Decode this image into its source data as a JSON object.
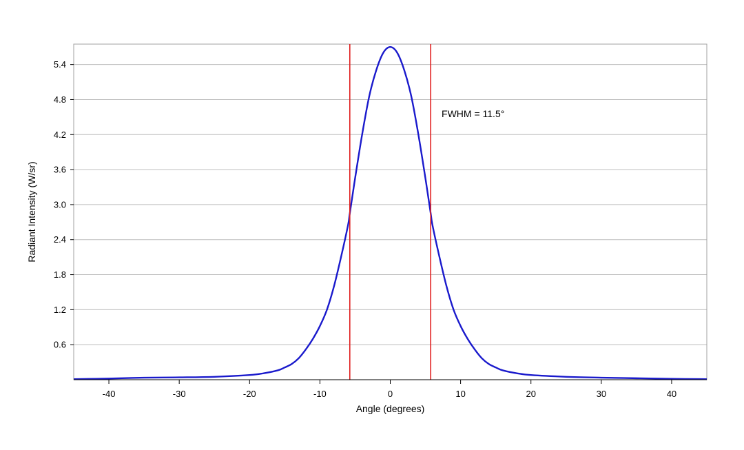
{
  "chart_data": {
    "type": "line",
    "title": "",
    "xlabel": "Angle (degrees)",
    "ylabel": "Radiant Intensity (W/sr)",
    "xlim": [
      -45,
      45
    ],
    "ylim": [
      0,
      5.75
    ],
    "x_ticks": [
      -40,
      -30,
      -20,
      -10,
      0,
      10,
      20,
      30,
      40
    ],
    "x_tick_labels": [
      "-40",
      "-30",
      "-20",
      "-10",
      "0",
      "10",
      "20",
      "30",
      "40"
    ],
    "y_ticks": [
      0.6,
      1.2,
      1.8,
      2.4,
      3.0,
      3.6,
      4.2,
      4.8,
      5.4
    ],
    "y_tick_labels": [
      "0.6",
      "1.2",
      "1.8",
      "2.4",
      "3.0",
      "3.6",
      "4.2",
      "4.8",
      "5.4"
    ],
    "grid": {
      "horizontal": true,
      "vertical": false
    },
    "line_color": "#1a1acc",
    "marker_line_color": "#e02020",
    "series": [
      {
        "x": [
          -45,
          -40,
          -35,
          -30,
          -25,
          -20,
          -18,
          -16,
          -15,
          -14,
          -13,
          -12,
          -11,
          -10,
          -9,
          -8,
          -7,
          -6,
          -5.75,
          -5,
          -4,
          -3,
          -2,
          -1,
          0,
          1,
          2,
          3,
          4,
          5,
          5.75,
          6,
          7,
          8,
          9,
          10,
          11,
          12,
          13,
          14,
          15,
          16,
          18,
          20,
          25,
          30,
          35,
          40,
          45
        ],
        "y": [
          0.01,
          0.02,
          0.035,
          0.04,
          0.05,
          0.08,
          0.11,
          0.16,
          0.21,
          0.27,
          0.37,
          0.52,
          0.7,
          0.92,
          1.2,
          1.6,
          2.1,
          2.65,
          2.85,
          3.45,
          4.2,
          4.85,
          5.3,
          5.6,
          5.7,
          5.6,
          5.3,
          4.85,
          4.2,
          3.45,
          2.85,
          2.65,
          2.1,
          1.6,
          1.2,
          0.92,
          0.7,
          0.52,
          0.37,
          0.27,
          0.21,
          0.16,
          0.11,
          0.08,
          0.05,
          0.035,
          0.025,
          0.015,
          0.01
        ]
      }
    ],
    "vertical_lines": [
      {
        "x": -5.75
      },
      {
        "x": 5.75
      }
    ],
    "annotations": [
      {
        "text": "FWHM = 11.5°",
        "x": 7.3,
        "y": 4.5
      }
    ]
  }
}
